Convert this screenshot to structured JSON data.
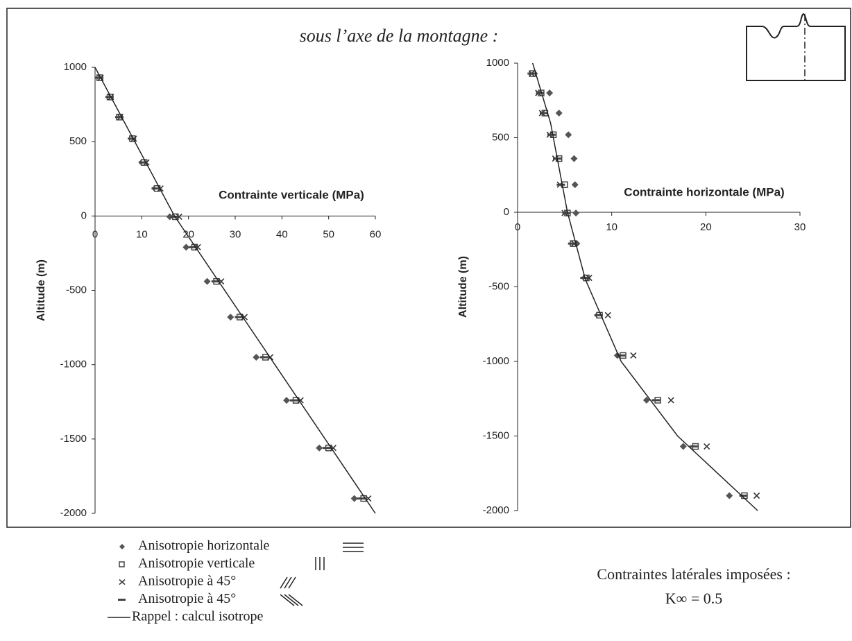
{
  "title": "sous l’axe de la montagne :",
  "chart_data": [
    {
      "type": "scatter",
      "x_label": "Contrainte verticale (MPa)",
      "y_label": "Altitude (m)",
      "xlim": [
        0,
        60
      ],
      "ylim": [
        -2000,
        1000
      ],
      "xticks": [
        0,
        10,
        20,
        30,
        40,
        50,
        60
      ],
      "yticks": [
        1000,
        500,
        0,
        -500,
        -1000,
        -1500,
        -2000
      ],
      "series": [
        {
          "name": "Anisotropie horizontale",
          "marker": "diamond",
          "color": "#555555",
          "x": [
            0.9,
            3,
            5,
            7.8,
            10,
            12.8,
            16,
            19.5,
            24,
            29,
            34.5,
            41,
            48,
            55.5
          ],
          "values": [
            930,
            800,
            665,
            520,
            360,
            185,
            -5,
            -210,
            -440,
            -680,
            -950,
            -1240,
            -1560,
            -1900
          ]
        },
        {
          "name": "Anisotropie verticale",
          "marker": "square",
          "color": "#444444",
          "x": [
            1,
            3.2,
            5.2,
            8,
            10.5,
            13.3,
            17.2,
            21.3,
            26,
            31,
            36.5,
            43,
            50,
            57.5
          ],
          "values": [
            930,
            800,
            665,
            520,
            360,
            185,
            -5,
            -210,
            -440,
            -680,
            -950,
            -1240,
            -1560,
            -1900
          ]
        },
        {
          "name": "Anisotropie à 45°",
          "marker": "cross",
          "color": "#333333",
          "x": [
            1.2,
            3.4,
            5.4,
            8.3,
            11,
            14,
            18,
            22,
            27,
            32,
            37.5,
            44,
            51,
            58.5
          ],
          "values": [
            930,
            800,
            665,
            520,
            360,
            185,
            -5,
            -210,
            -440,
            -680,
            -950,
            -1240,
            -1560,
            -1900
          ]
        },
        {
          "name": "Anisotropie à 45°",
          "marker": "dash",
          "color": "#444444",
          "x": [
            0.9,
            3.1,
            5.2,
            7.9,
            10.3,
            13,
            17,
            21,
            25.8,
            30.8,
            36.2,
            42.6,
            49.6,
            57
          ],
          "values": [
            930,
            800,
            665,
            520,
            360,
            185,
            -5,
            -210,
            -440,
            -680,
            -950,
            -1240,
            -1560,
            -1900
          ]
        },
        {
          "name": "Rappel : calcul isotrope",
          "marker": "line",
          "color": "#222222",
          "x": [
            0,
            17,
            60
          ],
          "values": [
            1000,
            0,
            -2000
          ]
        }
      ]
    },
    {
      "type": "scatter",
      "x_label": "Contrainte horizontale (MPa)",
      "y_label": "Altitude (m)",
      "xlim": [
        0,
        30
      ],
      "ylim": [
        -2000,
        1000
      ],
      "xticks": [
        0,
        10,
        20,
        30
      ],
      "yticks": [
        1000,
        500,
        0,
        -500,
        -1000,
        -1500,
        -2000
      ],
      "series": [
        {
          "marker": "diamond",
          "color": "#555555",
          "x": [
            1.8,
            3.4,
            4.4,
            5.4,
            6,
            6.1,
            6.2,
            6.3,
            7.1,
            8.5,
            10.6,
            13.7,
            17.6,
            22.5
          ],
          "values": [
            930,
            800,
            665,
            520,
            360,
            185,
            -5,
            -210,
            -440,
            -690,
            -960,
            -1260,
            -1570,
            -1900
          ]
        },
        {
          "marker": "square",
          "color": "#444444",
          "x": [
            1.6,
            2.5,
            2.9,
            3.8,
            4.4,
            5,
            5.3,
            5.9,
            7.3,
            8.7,
            11.2,
            14.9,
            18.9,
            24.1
          ],
          "values": [
            930,
            800,
            665,
            520,
            360,
            185,
            -5,
            -210,
            -440,
            -690,
            -960,
            -1260,
            -1570,
            -1900
          ]
        },
        {
          "marker": "cross",
          "color": "#333333",
          "x": [
            1.5,
            2.2,
            2.6,
            3.4,
            4,
            4.5,
            5,
            6,
            7.6,
            9.6,
            12.3,
            16.3,
            20.1,
            25.4
          ],
          "values": [
            930,
            800,
            665,
            520,
            360,
            185,
            -5,
            -210,
            -440,
            -690,
            -960,
            -1260,
            -1570,
            -1900
          ]
        },
        {
          "marker": "dash",
          "color": "#444444",
          "x": [
            1.5,
            2.4,
            2.8,
            3.6,
            4.2,
            4.6,
            5.2,
            5.8,
            7.1,
            8.6,
            11,
            14.7,
            18.7,
            24
          ],
          "values": [
            930,
            800,
            665,
            520,
            360,
            185,
            -5,
            -210,
            -440,
            -690,
            -960,
            -1260,
            -1570,
            -1900
          ]
        },
        {
          "marker": "line",
          "color": "#222222",
          "x": [
            1.6,
            3.5,
            5.3,
            7.2,
            11,
            17,
            25.5
          ],
          "values": [
            1000,
            600,
            0,
            -450,
            -1000,
            -1500,
            -2000
          ]
        }
      ]
    }
  ],
  "note": {
    "line1": "Contraintes latérales imposées :",
    "line2": "K∞ = 0.5"
  }
}
